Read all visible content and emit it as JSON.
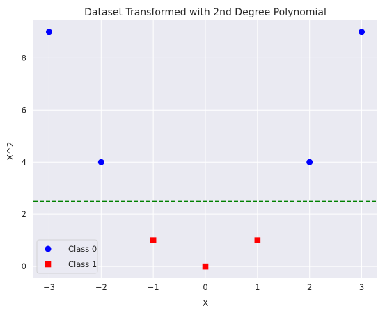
{
  "chart_data": {
    "type": "scatter",
    "title": "Dataset Transformed with 2nd Degree Polynomial",
    "xlabel": "X",
    "ylabel": "X^2",
    "xlim": [
      -3.3,
      3.3
    ],
    "ylim": [
      -0.45,
      9.45
    ],
    "xticks": [
      -3,
      -2,
      -1,
      0,
      1,
      2,
      3
    ],
    "yticks": [
      0,
      2,
      4,
      6,
      8
    ],
    "grid": true,
    "legend_position": "lower-left",
    "series": [
      {
        "name": "Class 0",
        "marker": "circle",
        "color": "#0000ff",
        "points": [
          [
            -3,
            9
          ],
          [
            -2,
            4
          ],
          [
            2,
            4
          ],
          [
            3,
            9
          ]
        ]
      },
      {
        "name": "Class 1",
        "marker": "square",
        "color": "#ff0000",
        "points": [
          [
            -1,
            1
          ],
          [
            0,
            0
          ],
          [
            1,
            1
          ]
        ]
      }
    ],
    "reference_lines": [
      {
        "orientation": "horizontal",
        "y": 2.5,
        "style": "dashed",
        "color": "#008000"
      }
    ],
    "background_color": "#eaeaf2",
    "grid_color": "#ffffff"
  }
}
